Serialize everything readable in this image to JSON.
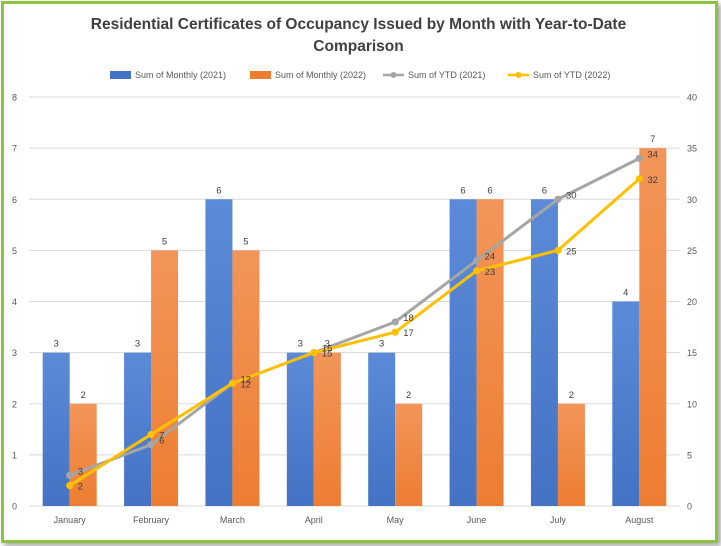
{
  "chart_data": {
    "type": "bar",
    "title_lines": [
      "Residential Certificates of Occupancy Issued by Month with Year-to-Date",
      "Comparison"
    ],
    "categories": [
      "January",
      "February",
      "March",
      "April",
      "May",
      "June",
      "July",
      "August"
    ],
    "bar_series": [
      {
        "name": "Sum of Monthly (2021)",
        "color": "#4472c4",
        "values": [
          3,
          3,
          6,
          3,
          3,
          6,
          6,
          4
        ]
      },
      {
        "name": "Sum of Monthly (2022)",
        "color": "#ed7d31",
        "values": [
          2,
          5,
          5,
          3,
          2,
          6,
          2,
          7
        ]
      }
    ],
    "line_series": [
      {
        "name": "Sum of YTD (2021)",
        "color": "#a5a5a5",
        "values": [
          3,
          6,
          12,
          15,
          18,
          24,
          30,
          34
        ]
      },
      {
        "name": "Sum of YTD (2022)",
        "color": "#ffc000",
        "values": [
          2,
          7,
          12,
          15,
          17,
          23,
          25,
          32
        ]
      }
    ],
    "left_axis": {
      "min": 0,
      "max": 8,
      "step": 1
    },
    "right_axis": {
      "min": 0,
      "max": 40,
      "step": 5
    },
    "grid": true,
    "legend_position": "top"
  }
}
